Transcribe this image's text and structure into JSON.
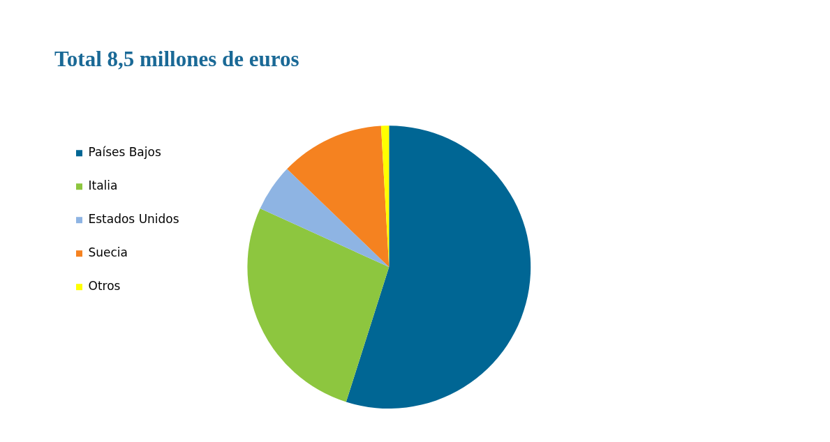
{
  "chart_data": {
    "type": "pie",
    "title": "Total 8,5 millones de euros",
    "categories": [
      "Países Bajos",
      "Italia",
      "Estados Unidos",
      "Suecia",
      "Otros"
    ],
    "values": [
      54.9,
      26.9,
      5.4,
      11.9,
      0.9
    ],
    "colors": [
      "#006694",
      "#8dc63f",
      "#8eb4e3",
      "#f58220",
      "#ffff00"
    ],
    "legend": "left"
  }
}
